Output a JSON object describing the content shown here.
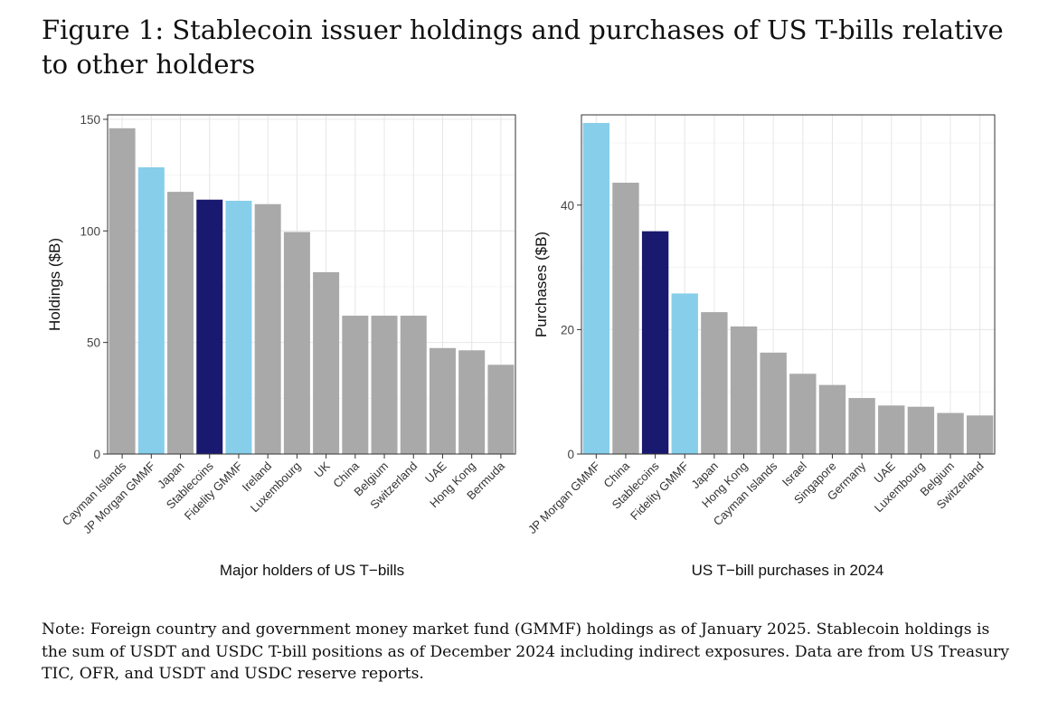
{
  "figure": {
    "title": "Figure 1: Stablecoin issuer holdings and purchases of US T-bills relative to other holders",
    "note": "Note: Foreign country and government money market fund (GMMF) holdings as of January 2025. Stablecoin holdings is the sum of USDT and USDC T-bill positions as of December 2024 including indirect exposures. Data are from US Treasury TIC, OFR, and USDT and USDC reserve reports."
  },
  "colors": {
    "grey": "#a9a9a9",
    "light_blue": "#87ceeb",
    "navy": "#191970"
  },
  "chart_data": [
    {
      "type": "bar",
      "xlabel": "Major holders of US T−bills",
      "ylabel": "Holdings ($B)",
      "ylim": [
        0,
        152
      ],
      "yticks": [
        0,
        50,
        100,
        150
      ],
      "grid": true,
      "categories": [
        "Cayman Islands",
        "JP Morgan GMMF",
        "Japan",
        "Stablecoins",
        "Fidelity GMMF",
        "Ireland",
        "Luxembourg",
        "UK",
        "China",
        "Belgium",
        "Switzerland",
        "UAE",
        "Hong Kong",
        "Bermuda"
      ],
      "values": [
        146,
        128.5,
        117.5,
        114,
        113.5,
        112,
        99.5,
        81.5,
        62,
        62,
        62,
        47.5,
        46.5,
        40
      ],
      "bar_colors": [
        "#a9a9a9",
        "#87ceeb",
        "#a9a9a9",
        "#191970",
        "#87ceeb",
        "#a9a9a9",
        "#a9a9a9",
        "#a9a9a9",
        "#a9a9a9",
        "#a9a9a9",
        "#a9a9a9",
        "#a9a9a9",
        "#a9a9a9",
        "#a9a9a9"
      ]
    },
    {
      "type": "bar",
      "xlabel": "US T−bill purchases in 2024",
      "ylabel": "Purchases ($B)",
      "ylim": [
        0,
        54.5
      ],
      "yticks": [
        0,
        20,
        40
      ],
      "grid": true,
      "categories": [
        "JP Morgan GMMF",
        "China",
        "Stablecoins",
        "Fidelity GMMF",
        "Japan",
        "Hong Kong",
        "Cayman Islands",
        "Israel",
        "Singapore",
        "Germany",
        "UAE",
        "Luxembourg",
        "Belgium",
        "Switzerland"
      ],
      "values": [
        53.2,
        43.6,
        35.8,
        25.8,
        22.8,
        20.5,
        16.3,
        12.9,
        11.1,
        9.0,
        7.8,
        7.6,
        6.6,
        6.2
      ],
      "bar_colors": [
        "#87ceeb",
        "#a9a9a9",
        "#191970",
        "#87ceeb",
        "#a9a9a9",
        "#a9a9a9",
        "#a9a9a9",
        "#a9a9a9",
        "#a9a9a9",
        "#a9a9a9",
        "#a9a9a9",
        "#a9a9a9",
        "#a9a9a9",
        "#a9a9a9"
      ]
    }
  ]
}
